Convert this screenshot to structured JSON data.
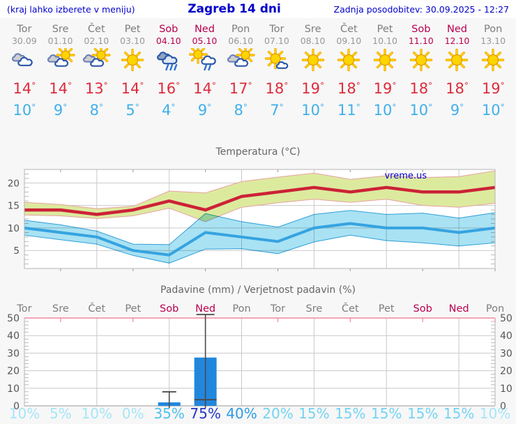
{
  "header": {
    "left": "(kraj lahko izberete v meniju)",
    "title": "Zagreb 14 dni",
    "updated": "Zadnja posodobitev: 30.09.2025 - 12:27"
  },
  "units": {
    "degree": "°",
    "percent": "%"
  },
  "days": [
    {
      "name": "Tor",
      "date": "30.09",
      "weekend": false,
      "icon": "cloudy",
      "tmax": 14,
      "tmin": 10,
      "precip_prob": 10
    },
    {
      "name": "Sre",
      "date": "01.10",
      "weekend": false,
      "icon": "partly-cloudy",
      "tmax": 14,
      "tmin": 9,
      "precip_prob": 5
    },
    {
      "name": "Čet",
      "date": "02.10",
      "weekend": false,
      "icon": "partly-cloudy",
      "tmax": 13,
      "tmin": 8,
      "precip_prob": 10
    },
    {
      "name": "Pet",
      "date": "03.10",
      "weekend": false,
      "icon": "sunny",
      "tmax": 14,
      "tmin": 5,
      "precip_prob": 0
    },
    {
      "name": "Sob",
      "date": "04.10",
      "weekend": true,
      "icon": "rain",
      "tmax": 16,
      "tmin": 4,
      "precip_prob": 35
    },
    {
      "name": "Ned",
      "date": "05.10",
      "weekend": true,
      "icon": "sun-rain",
      "tmax": 14,
      "tmin": 9,
      "precip_prob": 75
    },
    {
      "name": "Pon",
      "date": "06.10",
      "weekend": false,
      "icon": "partly-cloudy",
      "tmax": 17,
      "tmin": 8,
      "precip_prob": 40
    },
    {
      "name": "Tor",
      "date": "07.10",
      "weekend": false,
      "icon": "mostly-sunny",
      "tmax": 18,
      "tmin": 7,
      "precip_prob": 20
    },
    {
      "name": "Sre",
      "date": "08.10",
      "weekend": false,
      "icon": "sunny",
      "tmax": 19,
      "tmin": 10,
      "precip_prob": 15
    },
    {
      "name": "Čet",
      "date": "09.10",
      "weekend": false,
      "icon": "sunny",
      "tmax": 18,
      "tmin": 11,
      "precip_prob": 15
    },
    {
      "name": "Pet",
      "date": "10.10",
      "weekend": false,
      "icon": "sunny",
      "tmax": 19,
      "tmin": 10,
      "precip_prob": 15
    },
    {
      "name": "Sob",
      "date": "11.10",
      "weekend": true,
      "icon": "sunny",
      "tmax": 18,
      "tmin": 10,
      "precip_prob": 15
    },
    {
      "name": "Ned",
      "date": "12.10",
      "weekend": true,
      "icon": "sunny",
      "tmax": 18,
      "tmin": 9,
      "precip_prob": 15
    },
    {
      "name": "Pon",
      "date": "13.10",
      "weekend": false,
      "icon": "sunny",
      "tmax": 19,
      "tmin": 10,
      "precip_prob": 10
    }
  ],
  "chart_data": [
    {
      "type": "line",
      "title": "Temperatura (°C)",
      "watermark": "vreme.us",
      "categories": [
        "Tor 30.09",
        "Sre 01.10",
        "Čet 02.10",
        "Pet 03.10",
        "Sob 04.10",
        "Ned 05.10",
        "Pon 06.10",
        "Tor 07.10",
        "Sre 08.10",
        "Čet 09.10",
        "Pet 10.10",
        "Sob 11.10",
        "Ned 12.10",
        "Pon 13.10"
      ],
      "ylim": [
        1,
        23
      ],
      "y_ticks": [
        5,
        10,
        15,
        20
      ],
      "grid": "on",
      "series": [
        {
          "name": "tmax",
          "values": [
            14,
            14,
            13,
            14,
            16,
            14,
            17,
            18,
            19,
            18,
            19,
            18,
            18,
            19
          ]
        },
        {
          "name": "tmin",
          "values": [
            10,
            9,
            8,
            5,
            4,
            9,
            8,
            7,
            10,
            11,
            10,
            10,
            9,
            10
          ]
        },
        {
          "name": "tmax_band_upper",
          "values": [
            15.7,
            15.2,
            14.3,
            14.8,
            18.2,
            17.8,
            20.3,
            21.3,
            22.2,
            20.8,
            21.6,
            21.2,
            21.4,
            22.7
          ]
        },
        {
          "name": "tmax_band_lower",
          "values": [
            12.9,
            12.7,
            12.1,
            12.7,
            14.4,
            11.4,
            14.6,
            15.6,
            16.4,
            15.7,
            16.4,
            15.0,
            14.6,
            15.5
          ]
        },
        {
          "name": "tmin_band_upper",
          "values": [
            11.7,
            10.7,
            9.3,
            6.4,
            6.3,
            13.2,
            11.4,
            10.2,
            13.0,
            13.9,
            13.0,
            13.3,
            12.2,
            13.4
          ]
        },
        {
          "name": "tmin_band_lower",
          "values": [
            8.4,
            7.4,
            6.4,
            3.9,
            2.2,
            5.3,
            5.4,
            4.3,
            6.9,
            8.4,
            7.2,
            6.7,
            6.0,
            6.7
          ]
        }
      ]
    },
    {
      "type": "bar",
      "title": "Padavine (mm) / Verjetnost padavin (%)",
      "categories": [
        "Tor",
        "Sre",
        "Čet",
        "Pet",
        "Sob",
        "Ned",
        "Pon",
        "Tor",
        "Sre",
        "Čet",
        "Pet",
        "Sob",
        "Ned",
        "Pon"
      ],
      "values": [
        0,
        0,
        0,
        0,
        2,
        27.5,
        0,
        0,
        0,
        0,
        0,
        0,
        0,
        0
      ],
      "whisker_low": [
        null,
        null,
        null,
        null,
        0,
        3.5,
        null,
        null,
        null,
        null,
        null,
        null,
        null,
        null
      ],
      "whisker_high": [
        null,
        null,
        null,
        null,
        8,
        52,
        null,
        null,
        null,
        null,
        null,
        null,
        null,
        null
      ],
      "probabilities": [
        10,
        5,
        10,
        0,
        35,
        75,
        40,
        20,
        15,
        15,
        15,
        15,
        15,
        10
      ],
      "ylim": [
        0,
        50
      ],
      "y_ticks": [
        0,
        10,
        20,
        30,
        40,
        50
      ],
      "grid": "on"
    }
  ],
  "colors": {
    "accent_blue": "#0000cc",
    "page_bg": "#f7f7f7",
    "header_bg": "#ffffff",
    "plot_bg": "#ffffff",
    "weekday_text": "#7d7d7d",
    "date_text": "#989898",
    "weekend_text": "#b8004f",
    "tmax_text": "#dd2c3c",
    "tmin_text": "#3fb0ea",
    "line_max": "#cc2236",
    "line_min": "#36a3e0",
    "band_max_fill": "#dcea9e",
    "band_max_stroke": "#e8a0a0",
    "band_min_fill": "#a9e2f3",
    "band_min_stroke": "#2f9fd8",
    "bar_fill": "#2187dd",
    "whisker": "#4a4a4a",
    "grid": "#c9c9c9",
    "minor_tick": "#a9a9a9",
    "plot_border": "#b4b4b4",
    "precip_top_border": "#f087a0",
    "axis_text": "#555555",
    "chart_title": "#666666",
    "prob_scale": {
      "p0": "#a5e6f8",
      "p15": "#72d4f4",
      "p35": "#4fc0ee",
      "p40": "#2b9ce6",
      "p70": "#2236c8"
    }
  }
}
